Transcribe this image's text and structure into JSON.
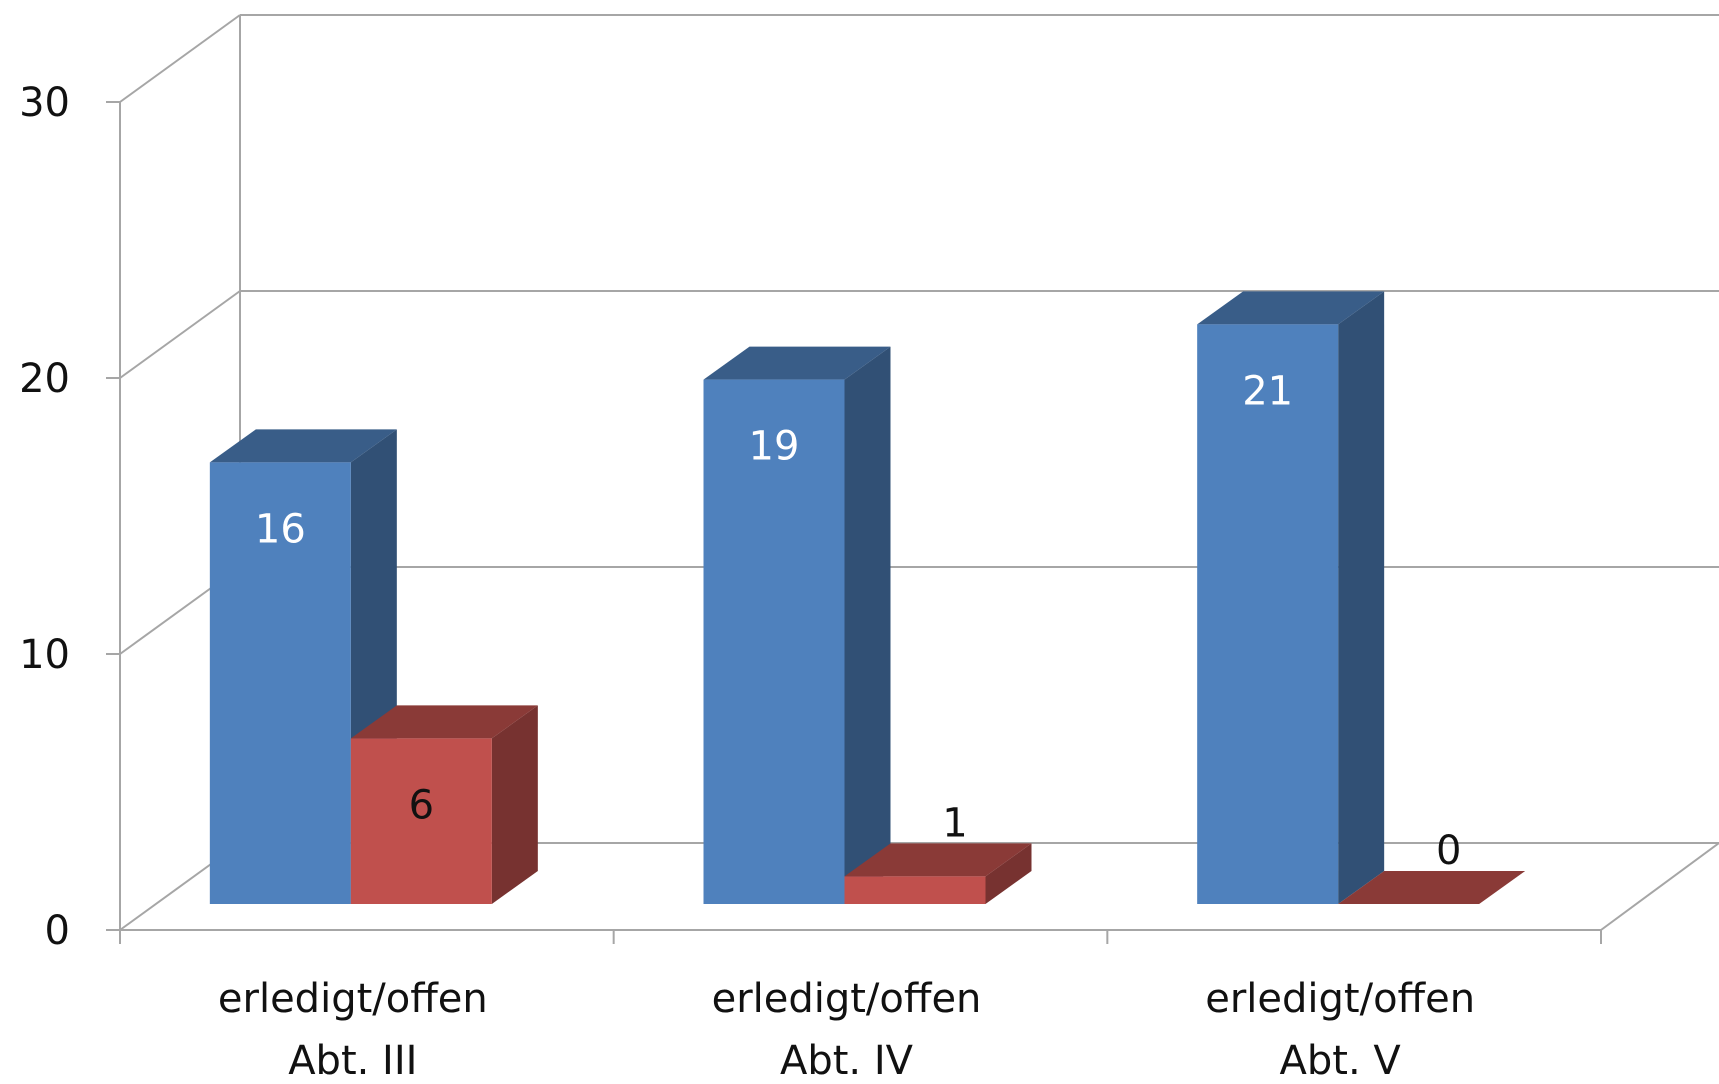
{
  "chart_data": {
    "type": "bar",
    "categories": [
      [
        "erledigt/offen",
        "Abt. III"
      ],
      [
        "erledigt/offen",
        "Abt. IV"
      ],
      [
        "erledigt/offen",
        "Abt. V"
      ]
    ],
    "series": [
      {
        "values": [
          16,
          19,
          21
        ],
        "color": "#4F81BD",
        "label_color": "#ffffff"
      },
      {
        "values": [
          6,
          1,
          0
        ],
        "color": "#C0504D",
        "label_color": "#111111"
      }
    ],
    "yticks": [
      "0",
      "10",
      "20",
      "30"
    ],
    "ylim": [
      0,
      30
    ],
    "grid": true,
    "style": "3d-column"
  }
}
